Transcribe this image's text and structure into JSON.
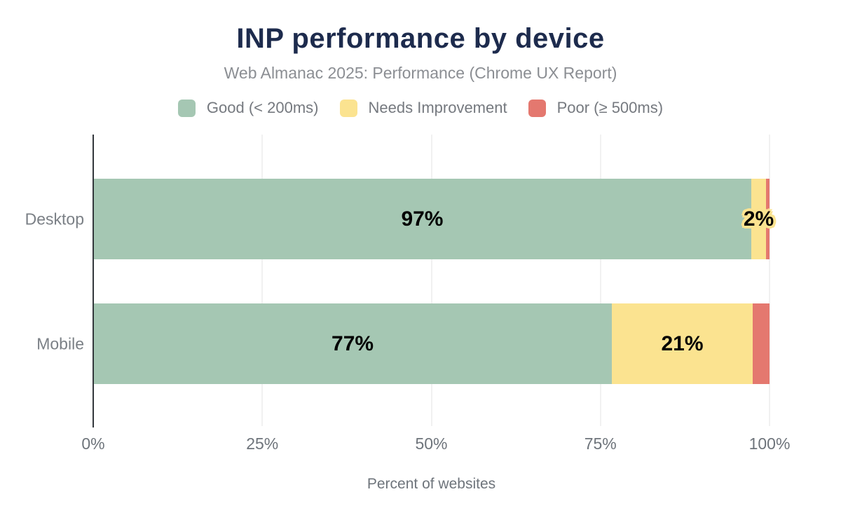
{
  "chart_data": {
    "type": "bar",
    "orientation": "horizontal",
    "stacked": true,
    "title": "INP performance by device",
    "subtitle": "Web Almanac 2025: Performance (Chrome UX Report)",
    "xlabel": "Percent of websites",
    "xlim": [
      0,
      100
    ],
    "grid": true,
    "legend_position": "top",
    "categories": [
      "Desktop",
      "Mobile"
    ],
    "series": [
      {
        "name": "Good (< 200ms)",
        "color": "#a5c7b3",
        "values": [
          97,
          77
        ],
        "labels": [
          "97%",
          "77%"
        ]
      },
      {
        "name": "Needs Improvement",
        "color": "#fbe390",
        "values": [
          2,
          21
        ],
        "labels": [
          "2%",
          "21%"
        ]
      },
      {
        "name": "Poor (≥ 500ms)",
        "color": "#e4786f",
        "values": [
          1,
          2
        ],
        "labels": [
          "",
          ""
        ]
      }
    ],
    "render_widths": [
      [
        97.3,
        2.2,
        0.5
      ],
      [
        76.7,
        20.8,
        2.5
      ]
    ],
    "x_ticks": [
      {
        "label": "0%",
        "pct": 0
      },
      {
        "label": "25%",
        "pct": 25
      },
      {
        "label": "50%",
        "pct": 50
      },
      {
        "label": "75%",
        "pct": 75
      },
      {
        "label": "100%",
        "pct": 100
      }
    ]
  },
  "colors": {
    "background": "#ffffff",
    "title": "#1d2b4d",
    "subtitle": "#8b8e93",
    "axis_line": "#33373c",
    "gridline": "#f1f1f1",
    "tick_label": "#6e747b",
    "category_label": "#7b8086",
    "bar_value_label": "#000000"
  }
}
